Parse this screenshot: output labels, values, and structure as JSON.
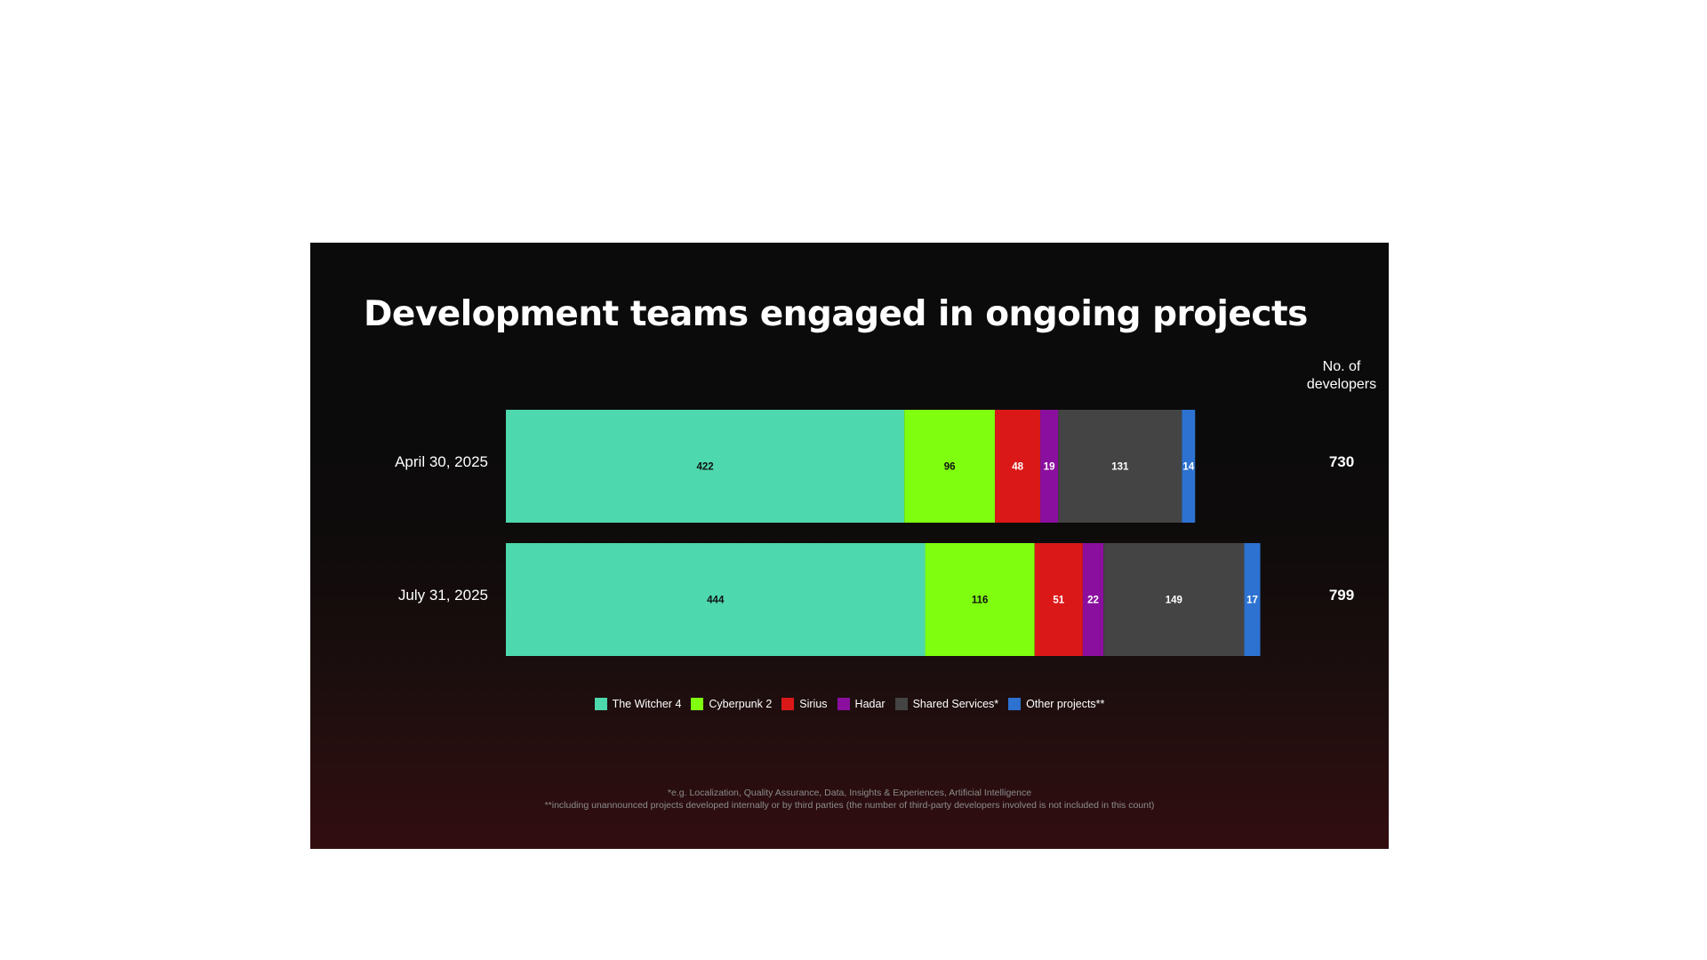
{
  "chart_data": {
    "type": "bar",
    "orientation": "horizontal",
    "stacked": true,
    "title": "Development teams engaged in ongoing projects",
    "categories": [
      "April 30, 2025",
      "July 31, 2025"
    ],
    "series": [
      {
        "name": "The Witcher 4",
        "color": "#4ed8ad",
        "label_color": "#111111",
        "values": [
          422,
          444
        ]
      },
      {
        "name": "Cyberpunk 2",
        "color": "#7fff0f",
        "label_color": "#111111",
        "values": [
          96,
          116
        ]
      },
      {
        "name": "Sirius",
        "color": "#db1818",
        "label_color": "#ffffff",
        "values": [
          48,
          51
        ]
      },
      {
        "name": "Hadar",
        "color": "#8b0f9e",
        "label_color": "#ffffff",
        "values": [
          19,
          22
        ]
      },
      {
        "name": "Shared Services*",
        "color": "#444444",
        "label_color": "#ffffff",
        "values": [
          131,
          149
        ]
      },
      {
        "name": "Other projects**",
        "color": "#2d72d0",
        "label_color": "#ffffff",
        "values": [
          14,
          17
        ]
      }
    ],
    "totals_header": "No. of developers",
    "totals": [
      730,
      799
    ],
    "legend_position": "bottom",
    "grid": false
  },
  "footnotes": [
    "*e.g. Localization, Quality Assurance, Data, Insights & Experiences, Artificial Intelligence",
    "**including unannounced projects developed internally or by third parties (the number of third-party developers involved is not included in this count)"
  ],
  "colors": {
    "background_top": "#0b0b0b",
    "background_bottom": "#320d10",
    "page": "#ffffff"
  }
}
